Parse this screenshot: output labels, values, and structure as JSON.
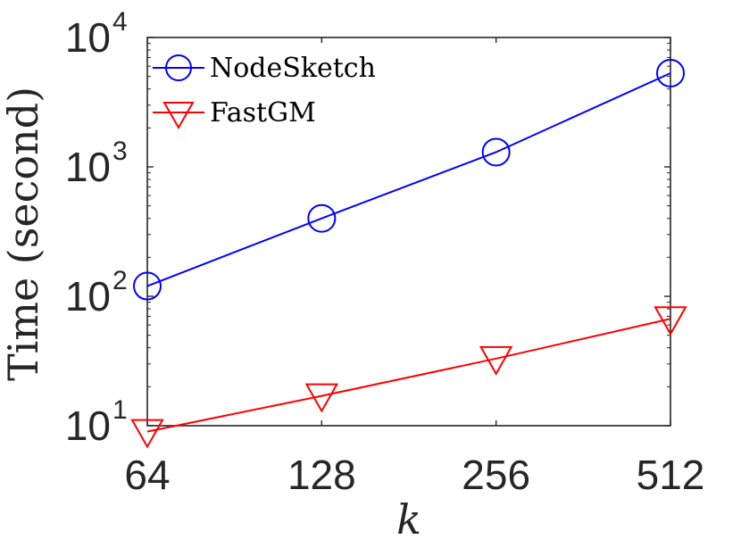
{
  "chart_data": {
    "type": "line",
    "x_scale": "log2",
    "y_scale": "log10",
    "x": [
      64,
      128,
      256,
      512
    ],
    "xticks": [
      "64",
      "128",
      "256",
      "512"
    ],
    "xlim": [
      64,
      512
    ],
    "ylim": [
      10,
      10000
    ],
    "yticks": [
      {
        "base": "10",
        "exp": "1"
      },
      {
        "base": "10",
        "exp": "2"
      },
      {
        "base": "10",
        "exp": "3"
      },
      {
        "base": "10",
        "exp": "4"
      }
    ],
    "xlabel": "k",
    "ylabel": "Time (second)",
    "legend_position": "top-left",
    "grid": false,
    "series": [
      {
        "name": "NodeSketch",
        "color": "#0000ff",
        "marker": "circle",
        "values": [
          120,
          400,
          1300,
          5300
        ]
      },
      {
        "name": "FastGM",
        "color": "#ff0000",
        "marker": "triangle-down",
        "values": [
          9,
          17,
          33,
          67
        ]
      }
    ]
  }
}
